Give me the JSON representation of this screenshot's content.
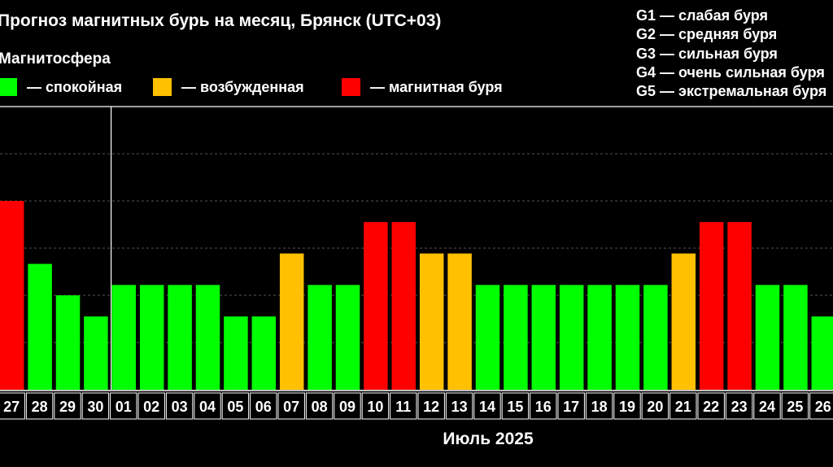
{
  "title": "Прогноз магнитных бурь на месяц, Брянск (UTC+03)",
  "subtitle": "Магнитосфера",
  "legend": [
    {
      "label": "— спокойная",
      "color": "#00FF00"
    },
    {
      "label": "— возбужденная",
      "color": "#FFC000"
    },
    {
      "label": "— магнитная буря",
      "color": "#FF0000"
    }
  ],
  "g_legend": [
    "G1 — слабая буря",
    "G2 — средняя буря",
    "G3 — сильная буря",
    "G4 — очень сильная буря",
    "G5 — экстремальная буря"
  ],
  "chart_data": {
    "type": "bar",
    "xlabel": "Июль 2025",
    "categories": [
      "27",
      "28",
      "29",
      "30",
      "01",
      "02",
      "03",
      "04",
      "05",
      "06",
      "07",
      "08",
      "09",
      "10",
      "11",
      "12",
      "13",
      "14",
      "15",
      "16",
      "17",
      "18",
      "19",
      "20",
      "21",
      "22",
      "23",
      "24",
      "25",
      "26"
    ],
    "values": [
      6,
      4,
      3,
      2.33,
      3.33,
      3.33,
      3.33,
      3.33,
      2.33,
      2.33,
      4.33,
      3.33,
      3.33,
      5.33,
      5.33,
      4.33,
      4.33,
      3.33,
      3.33,
      3.33,
      3.33,
      3.33,
      3.33,
      3.33,
      4.33,
      5.33,
      5.33,
      3.33,
      3.33,
      2.33
    ],
    "levels": [
      "storm",
      "quiet",
      "quiet",
      "quiet",
      "quiet",
      "quiet",
      "quiet",
      "quiet",
      "quiet",
      "quiet",
      "active",
      "quiet",
      "quiet",
      "storm",
      "storm",
      "active",
      "active",
      "quiet",
      "quiet",
      "quiet",
      "quiet",
      "quiet",
      "quiet",
      "quiet",
      "active",
      "storm",
      "storm",
      "quiet",
      "quiet",
      "quiet"
    ],
    "colors": {
      "quiet": "#00FF00",
      "active": "#FFC000",
      "storm": "#FF0000"
    },
    "ylim": [
      0,
      9
    ],
    "grid": true,
    "current_day_index": 4
  }
}
